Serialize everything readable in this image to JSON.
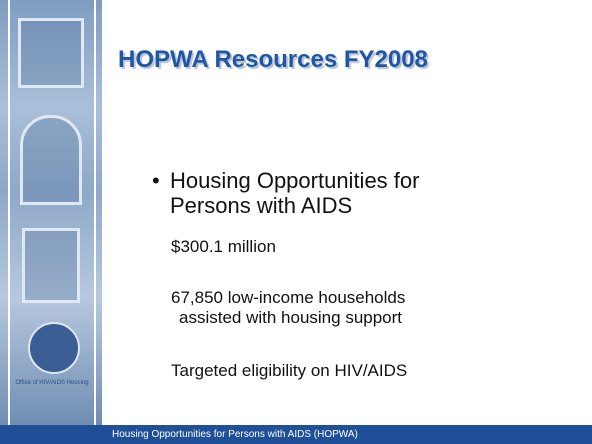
{
  "slide": {
    "title": "HOPWA Resources FY2008",
    "bullet": "Housing Opportunities for Persons with AIDS",
    "lines": [
      "$300.1 million",
      "67,850 low-income households assisted with housing support",
      "Targeted eligibility on HIV/AIDS"
    ],
    "seal_caption": "Office of HIV/AIDS Housing",
    "footer": "Housing Opportunities for Persons with AIDS (HOPWA)"
  }
}
